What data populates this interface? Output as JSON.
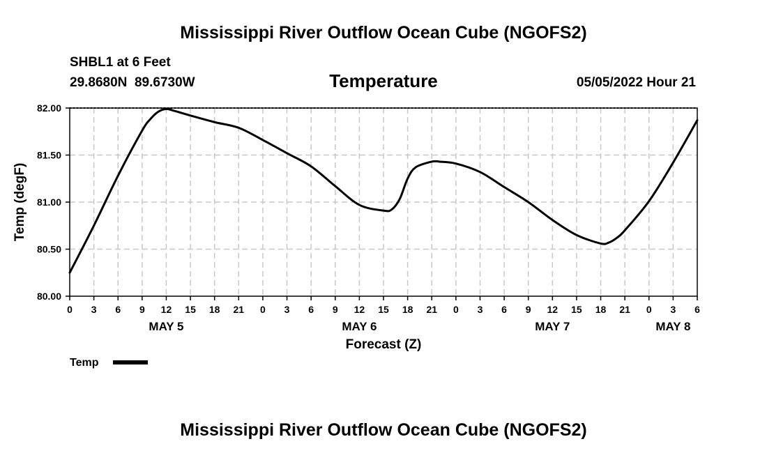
{
  "page": {
    "title_top": "Mississippi River Outflow Ocean Cube (NGOFS2)",
    "title_bottom": "Mississippi River Outflow Ocean Cube (NGOFS2)",
    "station": "SHBL1 at 6 Feet",
    "coords": "29.8680N  89.6730W",
    "datetime": "05/05/2022 Hour 21"
  },
  "chart_data": {
    "type": "line",
    "title": "Temperature",
    "xlabel": "Forecast (Z)",
    "ylabel": "Temp (degF)",
    "ylim": [
      80.0,
      82.0
    ],
    "xlim_hours": [
      0,
      78
    ],
    "grid": true,
    "y_ticks": [
      "80.00",
      "80.50",
      "81.00",
      "81.50",
      "82.00"
    ],
    "y_tick_values": [
      80.0,
      80.5,
      81.0,
      81.5,
      82.0
    ],
    "x_tick_hours": [
      0,
      3,
      6,
      9,
      12,
      15,
      18,
      21,
      24,
      27,
      30,
      33,
      36,
      39,
      42,
      45,
      48,
      51,
      54,
      57,
      60,
      63,
      66,
      69,
      72,
      75,
      78
    ],
    "x_tick_labels": [
      "0",
      "3",
      "6",
      "9",
      "12",
      "15",
      "18",
      "21",
      "0",
      "3",
      "6",
      "9",
      "12",
      "15",
      "18",
      "21",
      "0",
      "3",
      "6",
      "9",
      "12",
      "15",
      "18",
      "21",
      "0",
      "3",
      "6"
    ],
    "day_labels": [
      {
        "label": "MAY 5",
        "hour": 12
      },
      {
        "label": "MAY 6",
        "hour": 36
      },
      {
        "label": "MAY 7",
        "hour": 60
      },
      {
        "label": "MAY 8",
        "hour": 75
      }
    ],
    "legend": {
      "label": "Temp",
      "position": "bottom-left"
    },
    "series": [
      {
        "name": "Temp",
        "x_hours": [
          0,
          3,
          6,
          9,
          10,
          11,
          12,
          13,
          15,
          18,
          21,
          24,
          27,
          30,
          33,
          36,
          39,
          40,
          41,
          42,
          43,
          45,
          46,
          48,
          51,
          54,
          57,
          60,
          63,
          66,
          67,
          68,
          69,
          72,
          75,
          78
        ],
        "values": [
          80.25,
          80.75,
          81.28,
          81.76,
          81.88,
          81.96,
          81.99,
          81.97,
          81.92,
          81.85,
          81.79,
          81.66,
          81.52,
          81.38,
          81.17,
          80.97,
          80.91,
          80.92,
          81.03,
          81.25,
          81.37,
          81.43,
          81.43,
          81.41,
          81.32,
          81.16,
          81.0,
          80.81,
          80.65,
          80.56,
          80.57,
          80.62,
          80.7,
          81.01,
          81.42,
          81.87
        ]
      }
    ]
  }
}
